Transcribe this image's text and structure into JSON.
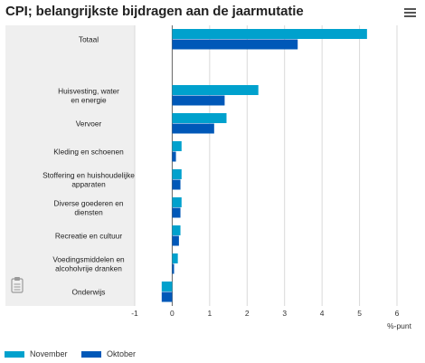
{
  "header": {
    "title": "CPI; belangrijkste bijdragen aan de jaarmutatie",
    "menu_icon": "hamburger-menu-icon"
  },
  "watermark_icon": "clipboard-icon",
  "colors": {
    "november": "#00a1cd",
    "oktober": "#0058b8",
    "label_band": "#efefef",
    "gridline": "#d9d9d9",
    "zero_line": "#666666"
  },
  "chart_data": {
    "type": "bar",
    "orientation": "horizontal",
    "title": "CPI; belangrijkste bijdragen aan de jaarmutatie",
    "xlabel": "%-punt",
    "xlim": [
      -1,
      6
    ],
    "x_ticks": [
      "-1",
      "0",
      "1",
      "2",
      "3",
      "4",
      "5",
      "6"
    ],
    "grid": true,
    "legend_position": "bottom-left",
    "categories": [
      "Totaal",
      "",
      "Huisvesting, water en energie",
      "Vervoer",
      "Kleding en schoenen",
      "Stoffering en huishoudelijke apparaten",
      "Diverse goederen en diensten",
      "Recreatie en cultuur",
      "Voedingsmiddelen en alcoholvrije dranken",
      "Onderwijs"
    ],
    "category_labels": [
      [
        "Totaal"
      ],
      [],
      [
        "Huisvesting, water",
        "en energie"
      ],
      [
        "Vervoer"
      ],
      [
        "Kleding en schoenen"
      ],
      [
        "Stoffering en huishoudelijke",
        "apparaten"
      ],
      [
        "Diverse goederen en",
        "diensten"
      ],
      [
        "Recreatie en cultuur"
      ],
      [
        "Voedingsmiddelen en",
        "alcoholvrije dranken"
      ],
      [
        "Onderwijs"
      ]
    ],
    "series": [
      {
        "name": "November",
        "values": [
          5.2,
          null,
          2.3,
          1.45,
          0.25,
          0.25,
          0.25,
          0.22,
          0.15,
          -0.28
        ]
      },
      {
        "name": "Oktober",
        "values": [
          3.35,
          null,
          1.4,
          1.12,
          0.1,
          0.22,
          0.22,
          0.18,
          0.05,
          -0.28
        ]
      }
    ]
  }
}
